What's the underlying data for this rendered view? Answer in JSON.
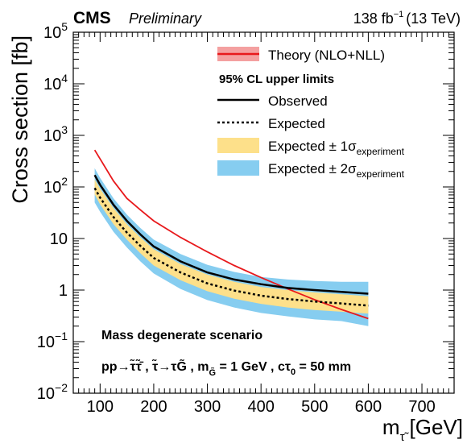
{
  "header": {
    "experiment": "CMS",
    "status": "Preliminary",
    "lumi": "138 fb",
    "lumi_exp": "−1",
    "energy": "(13 TeV)"
  },
  "axes": {
    "ylabel": "Cross section [fb]",
    "xlabel_main": "m",
    "xlabel_sub": "τ̃",
    "xlabel_unit": "[GeV]",
    "x_tick_labels": [
      "100",
      "200",
      "300",
      "400",
      "500",
      "600",
      "700"
    ],
    "y_tick_labels": [
      {
        "base": "10",
        "exp": "−2"
      },
      {
        "base": "10",
        "exp": "−1"
      },
      {
        "base": "1",
        "exp": ""
      },
      {
        "base": "10",
        "exp": ""
      },
      {
        "base": "10",
        "exp": "2"
      },
      {
        "base": "10",
        "exp": "3"
      },
      {
        "base": "10",
        "exp": "4"
      },
      {
        "base": "10",
        "exp": "5"
      }
    ]
  },
  "legend": {
    "theory": "Theory (NLO+NLL)",
    "heading": "95% CL upper limits",
    "observed": "Observed",
    "expected": "Expected",
    "band1_prefix": "Expected ± 1σ",
    "band1_sub": "experiment",
    "band2_prefix": "Expected ± 2σ",
    "band2_sub": "experiment"
  },
  "annotations": {
    "scenario": "Mass degenerate scenario",
    "process": "pp→τ̃τ̃̄ ,  τ̃→τG̃ , m",
    "process_sub": "G̃",
    "process_tail": " = 1 GeV , cτ",
    "ctau_sub": "0",
    "ctau_tail": " = 50 mm"
  },
  "colors": {
    "theory": "#e8191c",
    "theory_band": "#f4a0a0",
    "observed": "#000000",
    "expected": "#000000",
    "band1": "#fde08a",
    "band2": "#86cdf0"
  },
  "chart_data": {
    "type": "line",
    "xlabel": "m τ̃ [GeV]",
    "ylabel": "Cross section [fb]",
    "xlim": [
      50,
      760
    ],
    "ylim": [
      0.01,
      100000
    ],
    "yscale": "log",
    "x": [
      90,
      100,
      125,
      150,
      175,
      200,
      250,
      300,
      350,
      400,
      450,
      500,
      550,
      600
    ],
    "series": [
      {
        "name": "Observed",
        "values": [
          170,
          110,
          45,
          22,
          12,
          7.0,
          3.6,
          2.2,
          1.6,
          1.3,
          1.1,
          1.0,
          0.92,
          0.85
        ]
      },
      {
        "name": "Expected",
        "values": [
          95,
          62,
          26,
          13,
          7.2,
          4.2,
          2.2,
          1.35,
          0.98,
          0.78,
          0.67,
          0.6,
          0.55,
          0.5
        ]
      },
      {
        "name": "Expected ± 1σ lower",
        "values": [
          72,
          46,
          19,
          9.5,
          5.2,
          3.0,
          1.55,
          0.95,
          0.68,
          0.54,
          0.46,
          0.41,
          0.38,
          0.35
        ]
      },
      {
        "name": "Expected ± 1σ upper",
        "values": [
          140,
          92,
          39,
          19,
          10.5,
          6.2,
          3.2,
          2.0,
          1.45,
          1.15,
          1.0,
          0.9,
          0.83,
          0.76
        ]
      },
      {
        "name": "Expected ± 2σ lower",
        "values": [
          50,
          33,
          13.5,
          6.7,
          3.6,
          2.1,
          1.05,
          0.64,
          0.46,
          0.36,
          0.31,
          0.27,
          0.25,
          0.2
        ]
      },
      {
        "name": "Expected ± 2σ upper",
        "values": [
          230,
          150,
          60,
          29,
          16,
          9.5,
          5.0,
          3.1,
          2.25,
          1.8,
          1.6,
          1.5,
          1.45,
          1.45
        ]
      },
      {
        "name": "Theory (NLO+NLL)",
        "values": [
          520,
          350,
          130,
          60,
          36,
          22,
          10.5,
          5.5,
          3.0,
          1.75,
          1.05,
          0.65,
          0.42,
          0.28
        ]
      }
    ]
  }
}
